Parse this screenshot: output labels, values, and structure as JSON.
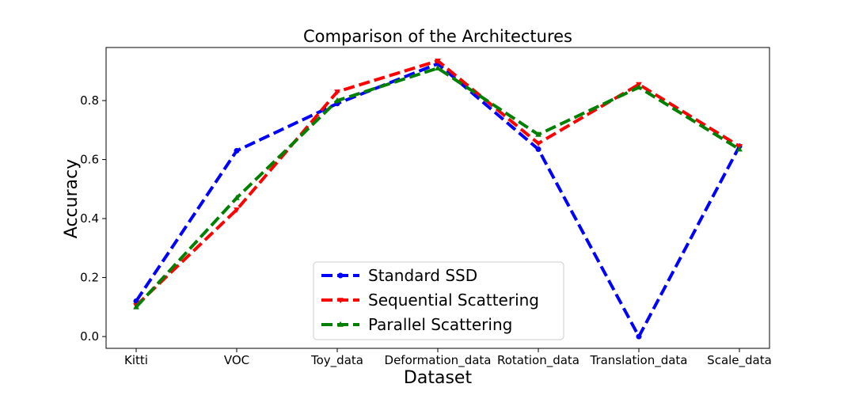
{
  "chart_data": {
    "type": "line",
    "title": "Comparison of the Architectures",
    "xlabel": "Dataset",
    "ylabel": "Accuracy",
    "categories": [
      "Kitti",
      "VOC",
      "Toy_data",
      "Deformation_data",
      "Rotation_data",
      "Translation_data",
      "Scale_data"
    ],
    "ylim": [
      -0.04,
      0.98
    ],
    "yticks": [
      0.0,
      0.2,
      0.4,
      0.6,
      0.8
    ],
    "ytick_labels": [
      "0.0",
      "0.2",
      "0.4",
      "0.6",
      "0.8"
    ],
    "grid": false,
    "legend_position": "bottom-center",
    "series": [
      {
        "name": "Standard SSD",
        "color": "#0000ff",
        "marker": "circle",
        "values": [
          0.12,
          0.63,
          0.79,
          0.925,
          0.635,
          0.0,
          0.645
        ]
      },
      {
        "name": "Sequential Scattering",
        "color": "#ff0000",
        "marker": "triangle-down",
        "values": [
          0.105,
          0.43,
          0.83,
          0.935,
          0.655,
          0.855,
          0.645
        ]
      },
      {
        "name": "Parallel Scattering",
        "color": "#008000",
        "marker": "triangle-up",
        "values": [
          0.1,
          0.47,
          0.8,
          0.91,
          0.685,
          0.845,
          0.635
        ]
      }
    ]
  }
}
